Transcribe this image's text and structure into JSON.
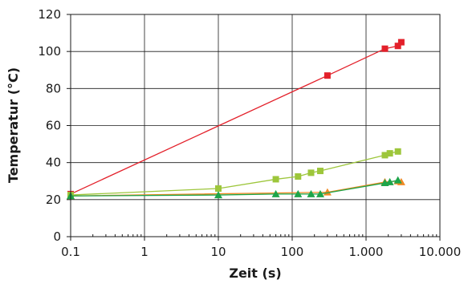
{
  "chart_data": {
    "type": "scatter",
    "xscale": "log",
    "xlim": [
      0.1,
      10000
    ],
    "ylim": [
      0,
      120
    ],
    "grid": true,
    "xlabel": "Zeit (s)",
    "ylabel": "Temperatur (°C)",
    "xticks": [
      0.1,
      1,
      10,
      100,
      1000,
      10000
    ],
    "xtick_labels": [
      "0.1",
      "1",
      "10",
      "100",
      "1.000",
      "10.000"
    ],
    "yticks": [
      0,
      20,
      40,
      60,
      80,
      100,
      120
    ],
    "ytick_labels": [
      "0",
      "20",
      "40",
      "60",
      "80",
      "100",
      "120"
    ],
    "series": [
      {
        "color": "#e3202a",
        "marker": "square",
        "x": [
          0.1,
          300,
          1800,
          2700,
          3000
        ],
        "y": [
          23,
          87,
          101.5,
          103,
          105
        ]
      },
      {
        "color": "#9dc63b",
        "marker": "square",
        "x": [
          0.1,
          10,
          60,
          120,
          180,
          240,
          1800,
          2100,
          2700
        ],
        "y": [
          22.5,
          26,
          31,
          32.5,
          34.5,
          35.5,
          44,
          45,
          46
        ]
      },
      {
        "color": "#f08a24",
        "marker": "triangle",
        "x": [
          0.1,
          300,
          1800,
          2700,
          3000
        ],
        "y": [
          22,
          24,
          29.5,
          30,
          29.5
        ]
      },
      {
        "color": "#1ea54a",
        "marker": "triangle",
        "x": [
          0.1,
          10,
          60,
          120,
          180,
          240,
          1800,
          2100,
          2700
        ],
        "y": [
          22,
          22.5,
          23,
          23,
          23,
          23,
          29,
          29.5,
          30.5
        ]
      }
    ]
  }
}
